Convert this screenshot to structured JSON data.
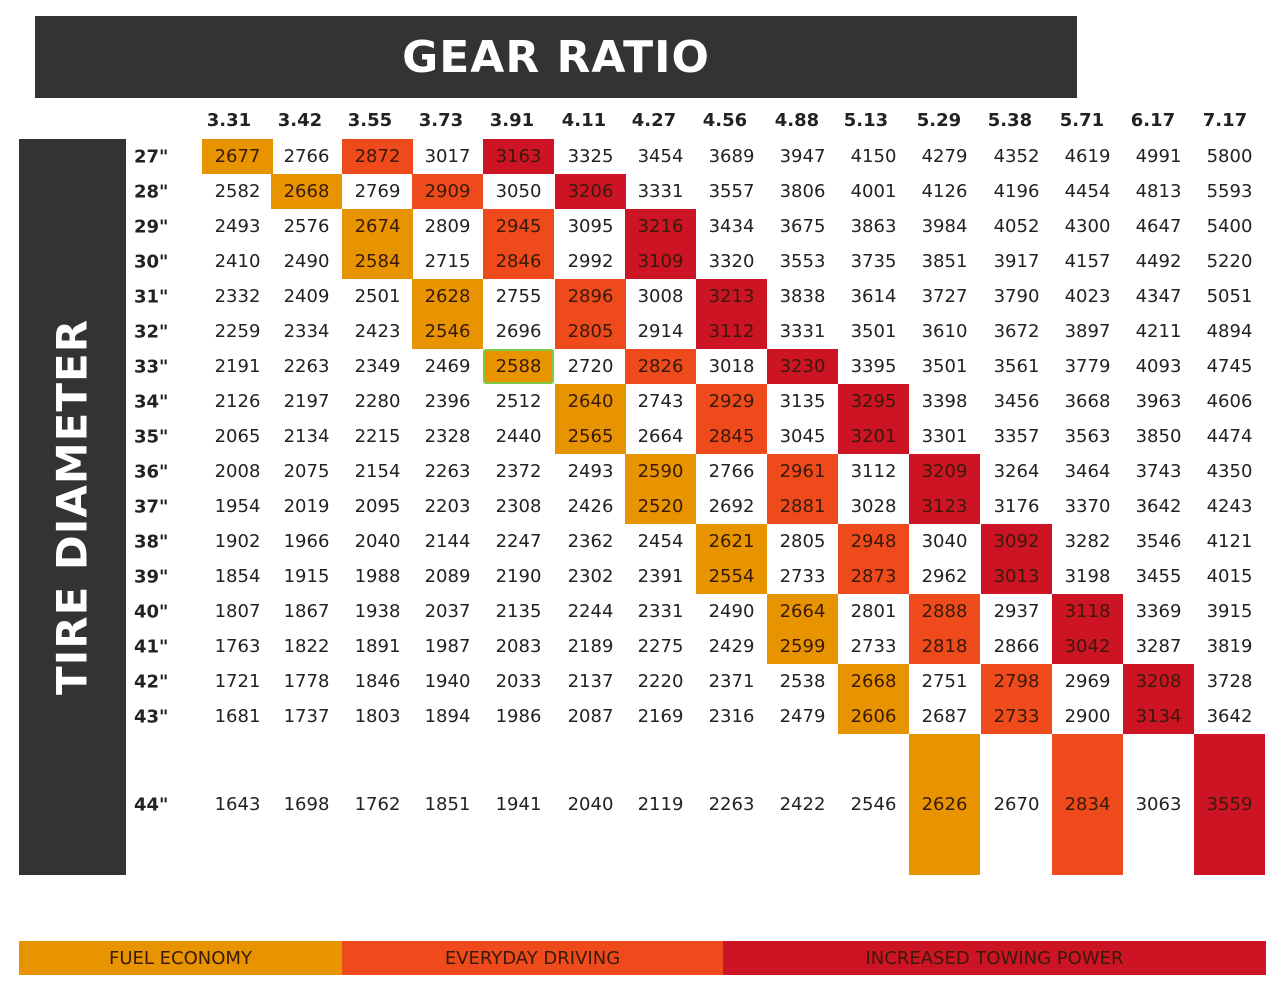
{
  "colors": {
    "fuel_economy": "#E89400",
    "everyday_driving": "#EE4A1B",
    "towing": "#CC1424",
    "highlight_outline": "#7EC843",
    "banner": "#333333"
  },
  "banner": {
    "title": "GEAR RATIO"
  },
  "side_banner": {
    "title": "TIRE DIAMETER"
  },
  "legend": [
    {
      "label": "FUEL ECONOMY",
      "category": "fuel_economy"
    },
    {
      "label": "EVERYDAY DRIVING",
      "category": "everyday_driving"
    },
    {
      "label": "INCREASED TOWING POWER",
      "category": "towing"
    }
  ],
  "chart_data": {
    "type": "table",
    "title": "GEAR RATIO",
    "ylabel": "TIRE DIAMETER",
    "columns": [
      "3.31",
      "3.42",
      "3.55",
      "3.73",
      "3.91",
      "4.11",
      "4.27",
      "4.56",
      "4.88",
      "5.13",
      "5.29",
      "5.38",
      "5.71",
      "6.17",
      "7.17"
    ],
    "rows": [
      "27\"",
      "28\"",
      "29\"",
      "30\"",
      "31\"",
      "32\"",
      "33\"",
      "34\"",
      "35\"",
      "36\"",
      "37\"",
      "38\"",
      "39\"",
      "40\"",
      "41\"",
      "42\"",
      "43\"",
      "44\""
    ],
    "values": [
      [
        2677,
        2766,
        2872,
        3017,
        3163,
        3325,
        3454,
        3689,
        3947,
        4150,
        4279,
        4352,
        4619,
        4991,
        5800
      ],
      [
        2582,
        2668,
        2769,
        2909,
        3050,
        3206,
        3331,
        3557,
        3806,
        4001,
        4126,
        4196,
        4454,
        4813,
        5593
      ],
      [
        2493,
        2576,
        2674,
        2809,
        2945,
        3095,
        3216,
        3434,
        3675,
        3863,
        3984,
        4052,
        4300,
        4647,
        5400
      ],
      [
        2410,
        2490,
        2584,
        2715,
        2846,
        2992,
        3109,
        3320,
        3553,
        3735,
        3851,
        3917,
        4157,
        4492,
        5220
      ],
      [
        2332,
        2409,
        2501,
        2628,
        2755,
        2896,
        3008,
        3213,
        3838,
        3614,
        3727,
        3790,
        4023,
        4347,
        5051
      ],
      [
        2259,
        2334,
        2423,
        2546,
        2696,
        2805,
        2914,
        3112,
        3331,
        3501,
        3610,
        3672,
        3897,
        4211,
        4894
      ],
      [
        2191,
        2263,
        2349,
        2469,
        2588,
        2720,
        2826,
        3018,
        3230,
        3395,
        3501,
        3561,
        3779,
        4093,
        4745
      ],
      [
        2126,
        2197,
        2280,
        2396,
        2512,
        2640,
        2743,
        2929,
        3135,
        3295,
        3398,
        3456,
        3668,
        3963,
        4606
      ],
      [
        2065,
        2134,
        2215,
        2328,
        2440,
        2565,
        2664,
        2845,
        3045,
        3201,
        3301,
        3357,
        3563,
        3850,
        4474
      ],
      [
        2008,
        2075,
        2154,
        2263,
        2372,
        2493,
        2590,
        2766,
        2961,
        3112,
        3209,
        3264,
        3464,
        3743,
        4350
      ],
      [
        1954,
        2019,
        2095,
        2203,
        2308,
        2426,
        2520,
        2692,
        2881,
        3028,
        3123,
        3176,
        3370,
        3642,
        4243
      ],
      [
        1902,
        1966,
        2040,
        2144,
        2247,
        2362,
        2454,
        2621,
        2805,
        2948,
        3040,
        3092,
        3282,
        3546,
        4121
      ],
      [
        1854,
        1915,
        1988,
        2089,
        2190,
        2302,
        2391,
        2554,
        2733,
        2873,
        2962,
        3013,
        3198,
        3455,
        4015
      ],
      [
        1807,
        1867,
        1938,
        2037,
        2135,
        2244,
        2331,
        2490,
        2664,
        2801,
        2888,
        2937,
        3118,
        3369,
        3915
      ],
      [
        1763,
        1822,
        1891,
        1987,
        2083,
        2189,
        2275,
        2429,
        2599,
        2733,
        2818,
        2866,
        3042,
        3287,
        3819
      ],
      [
        1721,
        1778,
        1846,
        1940,
        2033,
        2137,
        2220,
        2371,
        2538,
        2668,
        2751,
        2798,
        2969,
        3208,
        3728
      ],
      [
        1681,
        1737,
        1803,
        1894,
        1986,
        2087,
        2169,
        2316,
        2479,
        2606,
        2687,
        2733,
        2900,
        3134,
        3642
      ],
      [
        1643,
        1698,
        1762,
        1851,
        1941,
        2040,
        2119,
        2263,
        2422,
        2546,
        2626,
        2670,
        2834,
        3063,
        3559
      ]
    ],
    "highlights": [
      {
        "row": 0,
        "col": 0,
        "category": "fuel_economy"
      },
      {
        "row": 0,
        "col": 2,
        "category": "everyday_driving"
      },
      {
        "row": 0,
        "col": 4,
        "category": "towing"
      },
      {
        "row": 1,
        "col": 1,
        "category": "fuel_economy"
      },
      {
        "row": 1,
        "col": 3,
        "category": "everyday_driving"
      },
      {
        "row": 1,
        "col": 5,
        "category": "towing"
      },
      {
        "row": 2,
        "col": 2,
        "category": "fuel_economy"
      },
      {
        "row": 2,
        "col": 4,
        "category": "everyday_driving"
      },
      {
        "row": 2,
        "col": 6,
        "category": "towing"
      },
      {
        "row": 3,
        "col": 2,
        "category": "fuel_economy"
      },
      {
        "row": 3,
        "col": 4,
        "category": "everyday_driving"
      },
      {
        "row": 3,
        "col": 6,
        "category": "towing"
      },
      {
        "row": 4,
        "col": 3,
        "category": "fuel_economy"
      },
      {
        "row": 4,
        "col": 5,
        "category": "everyday_driving"
      },
      {
        "row": 4,
        "col": 7,
        "category": "towing"
      },
      {
        "row": 5,
        "col": 3,
        "category": "fuel_economy"
      },
      {
        "row": 5,
        "col": 5,
        "category": "everyday_driving"
      },
      {
        "row": 5,
        "col": 7,
        "category": "towing"
      },
      {
        "row": 6,
        "col": 4,
        "category": "fuel_economy",
        "outlined": true
      },
      {
        "row": 6,
        "col": 6,
        "category": "everyday_driving"
      },
      {
        "row": 6,
        "col": 8,
        "category": "towing"
      },
      {
        "row": 7,
        "col": 5,
        "category": "fuel_economy"
      },
      {
        "row": 7,
        "col": 7,
        "category": "everyday_driving"
      },
      {
        "row": 7,
        "col": 9,
        "category": "towing"
      },
      {
        "row": 8,
        "col": 5,
        "category": "fuel_economy"
      },
      {
        "row": 8,
        "col": 7,
        "category": "everyday_driving"
      },
      {
        "row": 8,
        "col": 9,
        "category": "towing"
      },
      {
        "row": 9,
        "col": 6,
        "category": "fuel_economy"
      },
      {
        "row": 9,
        "col": 8,
        "category": "everyday_driving"
      },
      {
        "row": 9,
        "col": 10,
        "category": "towing"
      },
      {
        "row": 10,
        "col": 6,
        "category": "fuel_economy"
      },
      {
        "row": 10,
        "col": 8,
        "category": "everyday_driving"
      },
      {
        "row": 10,
        "col": 10,
        "category": "towing"
      },
      {
        "row": 11,
        "col": 7,
        "category": "fuel_economy"
      },
      {
        "row": 11,
        "col": 9,
        "category": "everyday_driving"
      },
      {
        "row": 11,
        "col": 11,
        "category": "towing"
      },
      {
        "row": 12,
        "col": 7,
        "category": "fuel_economy"
      },
      {
        "row": 12,
        "col": 9,
        "category": "everyday_driving"
      },
      {
        "row": 12,
        "col": 11,
        "category": "towing"
      },
      {
        "row": 13,
        "col": 8,
        "category": "fuel_economy"
      },
      {
        "row": 13,
        "col": 10,
        "category": "everyday_driving"
      },
      {
        "row": 13,
        "col": 12,
        "category": "towing"
      },
      {
        "row": 14,
        "col": 8,
        "category": "fuel_economy"
      },
      {
        "row": 14,
        "col": 10,
        "category": "everyday_driving"
      },
      {
        "row": 14,
        "col": 12,
        "category": "towing"
      },
      {
        "row": 15,
        "col": 9,
        "category": "fuel_economy"
      },
      {
        "row": 15,
        "col": 11,
        "category": "everyday_driving"
      },
      {
        "row": 15,
        "col": 13,
        "category": "towing"
      },
      {
        "row": 16,
        "col": 9,
        "category": "fuel_economy"
      },
      {
        "row": 16,
        "col": 11,
        "category": "everyday_driving"
      },
      {
        "row": 16,
        "col": 13,
        "category": "towing"
      },
      {
        "row": 17,
        "col": 10,
        "category": "fuel_economy"
      },
      {
        "row": 17,
        "col": 12,
        "category": "everyday_driving"
      },
      {
        "row": 17,
        "col": 14,
        "category": "towing"
      }
    ]
  }
}
